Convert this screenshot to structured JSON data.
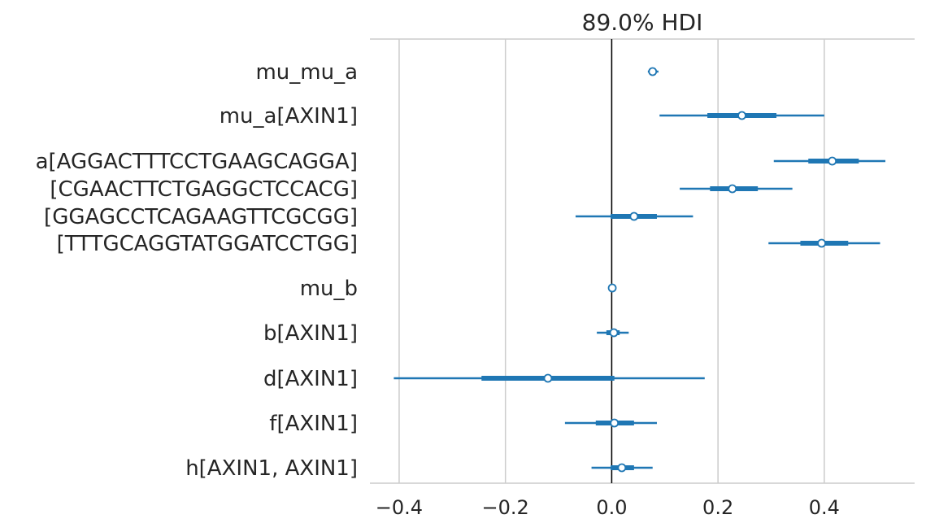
{
  "chart_data": {
    "type": "forest",
    "title": "89.0% HDI",
    "xlabel": "",
    "ylabel": "",
    "xlim": [
      -0.455,
      0.57
    ],
    "xticks": [
      -0.4,
      -0.2,
      0.0,
      0.2,
      0.4
    ],
    "xtick_labels": [
      "−0.4",
      "−0.2",
      "0.0",
      "0.2",
      "0.4"
    ],
    "grid": "vertical",
    "reference_line_x": 0.0,
    "color": "#1f77b4",
    "rows": [
      {
        "label": "mu_mu_a",
        "mean": 0.077,
        "hdi_low": 0.068,
        "hdi_high": 0.088,
        "iqr_low": 0.071,
        "iqr_high": 0.083
      },
      {
        "label": "mu_a[AXIN1]",
        "mean": 0.245,
        "hdi_low": 0.09,
        "hdi_high": 0.4,
        "iqr_low": 0.18,
        "iqr_high": 0.31
      },
      {
        "label": "a[AGGACTTTCCTGAAGCAGGA]",
        "mean": 0.415,
        "hdi_low": 0.305,
        "hdi_high": 0.515,
        "iqr_low": 0.37,
        "iqr_high": 0.465
      },
      {
        "label": "[CGAACTTCTGAGGCTCCACG]",
        "mean": 0.227,
        "hdi_low": 0.128,
        "hdi_high": 0.34,
        "iqr_low": 0.185,
        "iqr_high": 0.275
      },
      {
        "label": "[GGAGCCTCAGAAGTTCGCGG]",
        "mean": 0.042,
        "hdi_low": -0.068,
        "hdi_high": 0.153,
        "iqr_low": -0.002,
        "iqr_high": 0.085
      },
      {
        "label": "[TTTGCAGGTATGGATCCTGG]",
        "mean": 0.395,
        "hdi_low": 0.295,
        "hdi_high": 0.505,
        "iqr_low": 0.355,
        "iqr_high": 0.445
      },
      {
        "label": "mu_b",
        "mean": 0.001,
        "hdi_low": 0.0,
        "hdi_high": 0.002,
        "iqr_low": 0.0,
        "iqr_high": 0.002
      },
      {
        "label": "b[AXIN1]",
        "mean": 0.004,
        "hdi_low": -0.028,
        "hdi_high": 0.032,
        "iqr_low": -0.01,
        "iqr_high": 0.015
      },
      {
        "label": "d[AXIN1]",
        "mean": -0.12,
        "hdi_low": -0.41,
        "hdi_high": 0.175,
        "iqr_low": -0.245,
        "iqr_high": 0.005
      },
      {
        "label": "f[AXIN1]",
        "mean": 0.005,
        "hdi_low": -0.088,
        "hdi_high": 0.085,
        "iqr_low": -0.03,
        "iqr_high": 0.042
      },
      {
        "label": "h[AXIN1, AXIN1]",
        "mean": 0.019,
        "hdi_low": -0.038,
        "hdi_high": 0.077,
        "iqr_low": -0.002,
        "iqr_high": 0.042
      }
    ]
  }
}
